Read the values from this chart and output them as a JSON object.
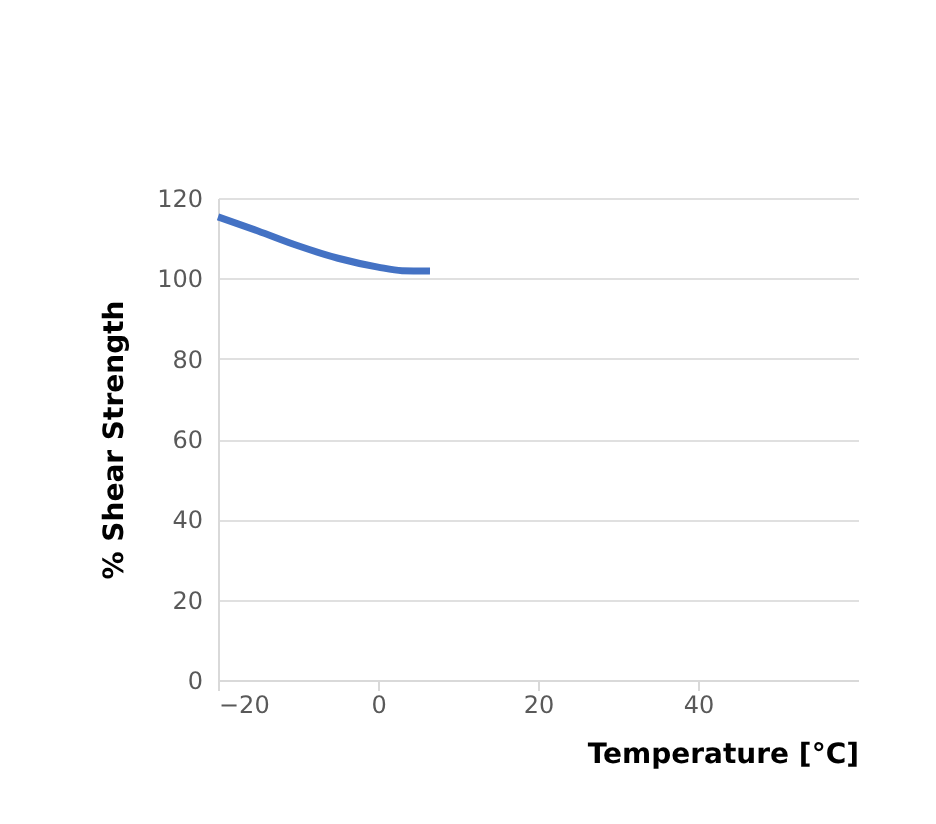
{
  "chart_data": {
    "type": "line",
    "xlabel": "Temperature [°C]",
    "ylabel": "% Shear Strength",
    "x": [
      -20,
      -15,
      -10,
      -5,
      0,
      3,
      6.5
    ],
    "series": [
      {
        "color": "#4472c4",
        "values": [
          115.3,
          111.8,
          108.1,
          105.0,
          102.8,
          101.9,
          101.8
        ]
      }
    ],
    "xlim": [
      -20,
      60
    ],
    "xticks": [
      -20,
      0,
      20,
      40
    ],
    "ylim": [
      0,
      120
    ],
    "yticks": [
      0,
      20,
      40,
      60,
      80,
      100,
      120
    ],
    "grid": "y",
    "line_style": "solid",
    "marker": "none"
  }
}
